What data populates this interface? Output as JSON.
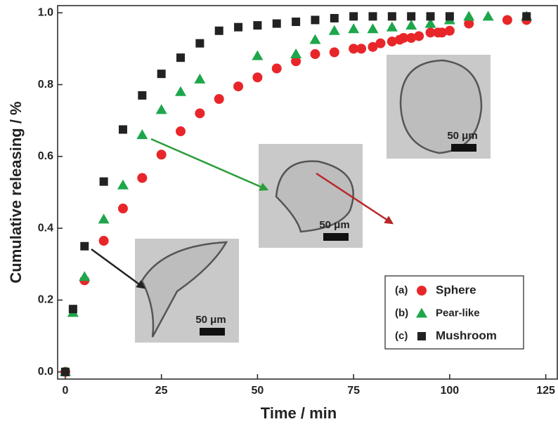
{
  "chart_data": {
    "type": "scatter",
    "x_label": "Time / min",
    "y_label": "Cumulative releasing / %",
    "xlim": [
      -2,
      128
    ],
    "ylim": [
      -0.02,
      1.02
    ],
    "xticks": [
      0,
      25,
      50,
      75,
      100,
      125
    ],
    "yticks": [
      {
        "value": 0,
        "label": "0.0"
      },
      0.2,
      0.4,
      0.6,
      0.8,
      {
        "value": 1,
        "label": "1.0"
      }
    ],
    "legend": "lower right",
    "series": [
      {
        "name": "Sphere",
        "label": "(a)",
        "marker": "circle",
        "color": "#e8262a",
        "x": [
          0,
          5,
          10,
          15,
          20,
          25,
          30,
          35,
          40,
          45,
          50,
          55,
          60,
          65,
          70,
          75,
          77,
          80,
          82,
          85,
          87,
          88,
          90,
          92,
          95,
          97,
          98,
          100,
          105,
          115,
          120
        ],
        "values": [
          0,
          0.255,
          0.365,
          0.455,
          0.54,
          0.605,
          0.67,
          0.72,
          0.76,
          0.795,
          0.82,
          0.845,
          0.865,
          0.885,
          0.89,
          0.9,
          0.9,
          0.905,
          0.915,
          0.92,
          0.925,
          0.93,
          0.93,
          0.935,
          0.945,
          0.945,
          0.945,
          0.95,
          0.97,
          0.98,
          0.98
        ]
      },
      {
        "name": "Pear-like",
        "label": "(b)",
        "marker": "triangle",
        "color": "#1ea64b",
        "x": [
          0,
          2,
          5,
          10,
          15,
          20,
          25,
          30,
          35,
          50,
          60,
          65,
          70,
          75,
          80,
          85,
          90,
          95,
          100,
          105,
          110,
          120
        ],
        "values": [
          0,
          0.165,
          0.265,
          0.425,
          0.52,
          0.66,
          0.73,
          0.78,
          0.815,
          0.88,
          0.885,
          0.925,
          0.95,
          0.955,
          0.955,
          0.96,
          0.965,
          0.97,
          0.98,
          0.99,
          0.99,
          0.99
        ]
      },
      {
        "name": "Mushroom",
        "label": "(c)",
        "marker": "square",
        "color": "#222222",
        "x": [
          0,
          2,
          5,
          10,
          15,
          20,
          25,
          30,
          35,
          40,
          45,
          50,
          55,
          60,
          65,
          70,
          75,
          80,
          85,
          90,
          95,
          100,
          120
        ],
        "values": [
          0,
          0.175,
          0.35,
          0.53,
          0.675,
          0.77,
          0.83,
          0.875,
          0.915,
          0.95,
          0.96,
          0.965,
          0.97,
          0.975,
          0.98,
          0.985,
          0.99,
          0.99,
          0.99,
          0.99,
          0.99,
          0.99,
          0.99
        ]
      }
    ],
    "insets": [
      {
        "label": "50 μm"
      },
      {
        "label": "50 μm"
      },
      {
        "label": "50 μm"
      }
    ]
  }
}
